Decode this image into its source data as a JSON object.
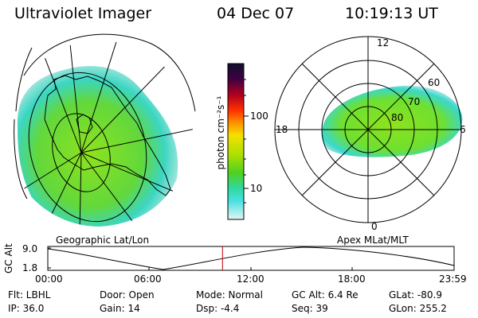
{
  "header": {
    "instrument": "Ultraviolet Imager",
    "date": "04 Dec 07",
    "time": "10:19:13 UT"
  },
  "panels": {
    "left_label": "Geographic Lat/Lon",
    "right_label": "Apex MLat/MLT"
  },
  "polar_plot": {
    "mlt_labels": {
      "top": "12",
      "left": "18",
      "right": "6",
      "bottom": "0"
    },
    "lat_labels": [
      "60",
      "70",
      "80"
    ]
  },
  "colorbar": {
    "unit": "photon cm⁻²s⁻¹",
    "ticks": [
      "100",
      "10"
    ]
  },
  "timeline": {
    "ylabel": "GC Alt",
    "ytick": "9.0",
    "ytick2": "1.8",
    "xticks": [
      "00:00",
      "06:00",
      "12:00",
      "18:00",
      "23:59"
    ],
    "marker_time_hours": 10.32
  },
  "status": {
    "filter": "Flt: LBHL",
    "ip": "IP: 36.0",
    "door": "Door: Open",
    "gain": "Gain: 14",
    "mode": "Mode: Normal",
    "dsp": "Dsp:    -4.4",
    "gc_alt": "GC Alt: 6.4 Re",
    "seq": "Seq: 39",
    "glat": "GLat: -80.9",
    "glon": "GLon: 255.2"
  },
  "colors": {
    "aurora_green": "#7fe020",
    "aurora_cyan": "#38d8d0",
    "marker": "#c00000"
  }
}
